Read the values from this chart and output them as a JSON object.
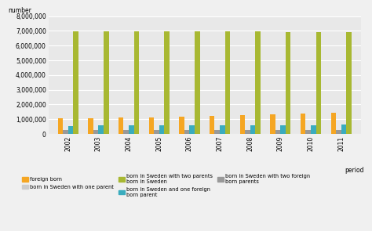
{
  "years": [
    2002,
    2003,
    2004,
    2005,
    2006,
    2007,
    2008,
    2009,
    2010,
    2011
  ],
  "foreign_born": [
    1050000,
    1080000,
    1100000,
    1110000,
    1160000,
    1210000,
    1270000,
    1330000,
    1390000,
    1450000
  ],
  "two_foreign_parents": [
    265000,
    270000,
    255000,
    260000,
    270000,
    265000,
    270000,
    260000,
    255000,
    260000
  ],
  "one_foreign_parent": [
    560000,
    565000,
    565000,
    565000,
    580000,
    575000,
    615000,
    585000,
    615000,
    635000
  ],
  "two_parents_sweden": [
    6980000,
    6970000,
    6960000,
    6960000,
    6960000,
    6950000,
    6950000,
    6940000,
    6940000,
    6930000
  ],
  "colors": {
    "foreign_born": "#f5a623",
    "two_foreign_parents": "#999999",
    "one_foreign_parent": "#3aacbe",
    "two_parents_sweden": "#a8b832"
  },
  "ylabel": "number",
  "xlabel": "period",
  "ylim": [
    0,
    8000000
  ],
  "yticks": [
    0,
    1000000,
    2000000,
    3000000,
    4000000,
    5000000,
    6000000,
    7000000,
    8000000
  ],
  "plot_bg": "#e8e8e8",
  "fig_bg": "#f0f0f0",
  "bar_width": 0.17,
  "legend_entries": [
    {
      "label": "foreign born",
      "color": "#f5a623"
    },
    {
      "label": "born in Sweden with one parent",
      "color": "#cccccc"
    },
    {
      "label": "born in Sweden with two parents\nborn in Sweden",
      "color": "#a8b832"
    },
    {
      "label": "born in Sweden and one foreign\nborn parent",
      "color": "#3aacbe"
    },
    {
      "label": "born in Sweden with two foreign\nborn parents",
      "color": "#999999"
    }
  ]
}
